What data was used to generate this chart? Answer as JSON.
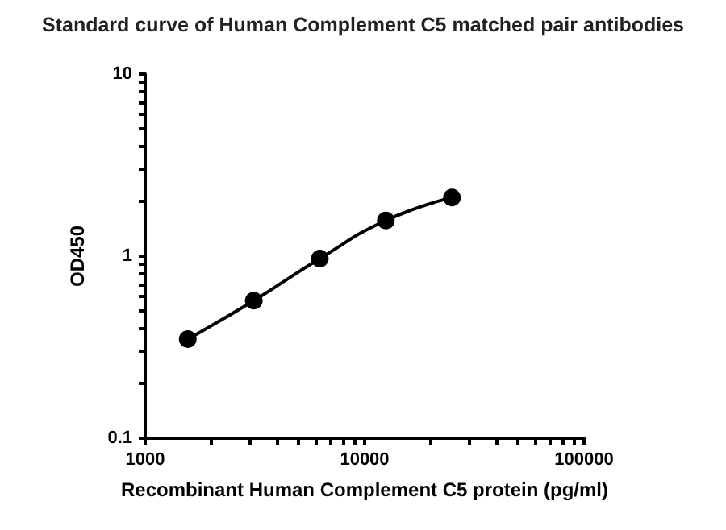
{
  "chart_data": {
    "type": "line",
    "title": "Standard curve of Human Complement C5 matched pair antibodies",
    "xlabel": "Recombinant Human Complement C5 protein (pg/ml)",
    "ylabel": "OD450",
    "x": [
      1563,
      3125,
      6250,
      12500,
      25000
    ],
    "series": [
      {
        "color": "#000000",
        "values": [
          0.35,
          0.57,
          0.97,
          1.57,
          2.1
        ]
      }
    ],
    "log": "xy",
    "xlim": [
      1000,
      100000
    ],
    "ylim": [
      0.1,
      10
    ],
    "xticks": [
      1000,
      {
        "value": 2000,
        "label": null
      },
      {
        "value": 3000,
        "label": null
      },
      {
        "value": 4000,
        "label": null
      },
      {
        "value": 5000,
        "label": null
      },
      {
        "value": 6000,
        "label": null
      },
      {
        "value": 7000,
        "label": null
      },
      {
        "value": 8000,
        "label": null
      },
      {
        "value": 9000,
        "label": null
      },
      10000,
      {
        "value": 20000,
        "label": null
      },
      {
        "value": 30000,
        "label": null
      },
      {
        "value": 40000,
        "label": null
      },
      {
        "value": 50000,
        "label": null
      },
      {
        "value": 60000,
        "label": null
      },
      {
        "value": 70000,
        "label": null
      },
      {
        "value": 80000,
        "label": null
      },
      {
        "value": 90000,
        "label": null
      },
      100000
    ],
    "yticks": [
      0.1,
      {
        "value": 0.2,
        "label": null
      },
      {
        "value": 0.3,
        "label": null
      },
      {
        "value": 0.4,
        "label": null
      },
      {
        "value": 0.5,
        "label": null
      },
      {
        "value": 0.6,
        "label": null
      },
      {
        "value": 0.7,
        "label": null
      },
      {
        "value": 0.8,
        "label": null
      },
      {
        "value": 0.9,
        "label": null
      },
      1,
      {
        "value": 2,
        "label": null
      },
      {
        "value": 3,
        "label": null
      },
      {
        "value": 4,
        "label": null
      },
      {
        "value": 5,
        "label": null
      },
      {
        "value": 6,
        "label": null
      },
      {
        "value": 7,
        "label": null
      },
      {
        "value": 8,
        "label": null
      },
      {
        "value": 9,
        "label": null
      },
      10
    ],
    "grid": false,
    "marker": "circle",
    "line_style": "solid"
  }
}
